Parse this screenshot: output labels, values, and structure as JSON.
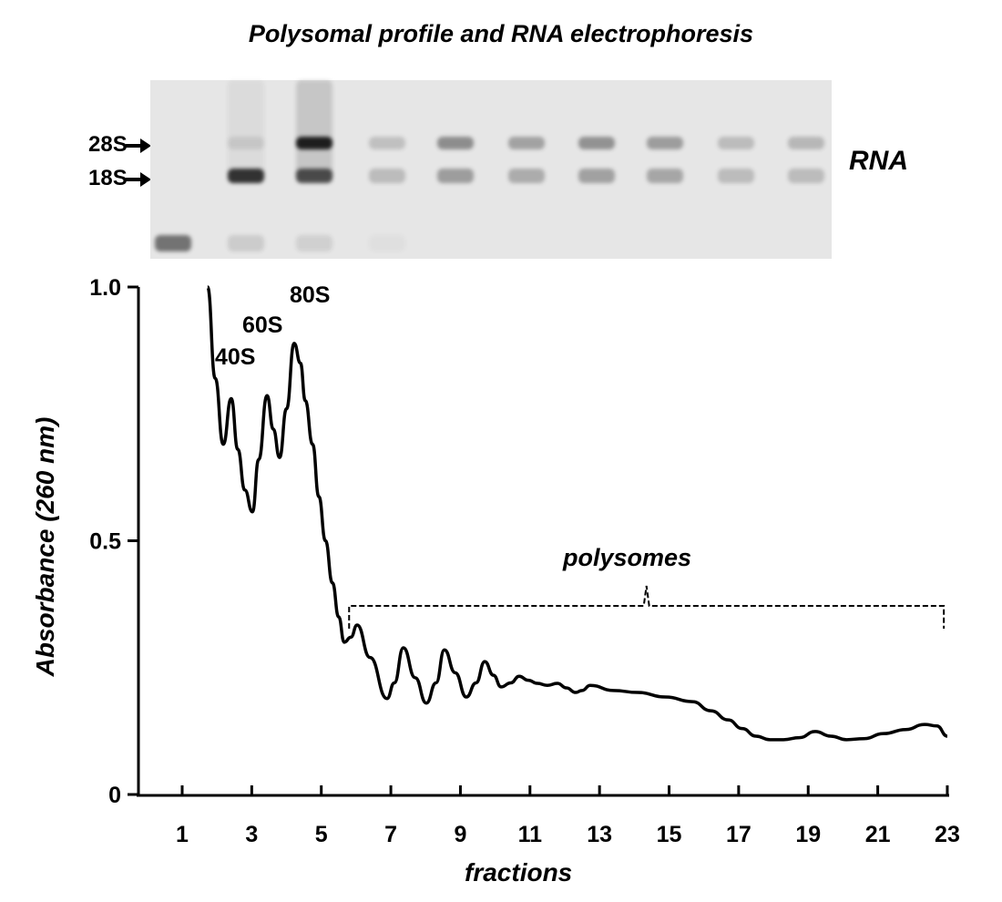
{
  "title": "Polysomal profile and RNA electrophoresis",
  "gel": {
    "markers": [
      {
        "label": "28S"
      },
      {
        "label": "18S"
      }
    ],
    "side_label": "RNA",
    "lanes": [
      {
        "rRNA_28S": 0.0,
        "rRNA_18S": 0.0,
        "low": 0.55,
        "smear": 0
      },
      {
        "rRNA_28S": 0.1,
        "rRNA_18S": 0.85,
        "low": 0.12,
        "smear": 0.05
      },
      {
        "rRNA_28S": 0.95,
        "rRNA_18S": 0.7,
        "low": 0.1,
        "smear": 0.15
      },
      {
        "rRNA_28S": 0.18,
        "rRNA_18S": 0.2,
        "low": 0.03,
        "smear": 0
      },
      {
        "rRNA_28S": 0.42,
        "rRNA_18S": 0.35,
        "low": 0,
        "smear": 0
      },
      {
        "rRNA_28S": 0.32,
        "rRNA_18S": 0.28,
        "low": 0,
        "smear": 0
      },
      {
        "rRNA_28S": 0.4,
        "rRNA_18S": 0.33,
        "low": 0,
        "smear": 0
      },
      {
        "rRNA_28S": 0.35,
        "rRNA_18S": 0.3,
        "low": 0,
        "smear": 0
      },
      {
        "rRNA_28S": 0.2,
        "rRNA_18S": 0.2,
        "low": 0,
        "smear": 0
      },
      {
        "rRNA_28S": 0.22,
        "rRNA_18S": 0.2,
        "low": 0,
        "smear": 0
      }
    ]
  },
  "chart_data": {
    "type": "line",
    "xlabel": "fractions",
    "ylabel": "Absorbance (260 nm)",
    "xlim": [
      -0.3,
      23
    ],
    "ylim": [
      0,
      1.0
    ],
    "xticks": [
      1,
      3,
      5,
      7,
      9,
      11,
      13,
      15,
      17,
      19,
      21,
      23
    ],
    "xtick_labels": [
      "1",
      "3",
      "5",
      "7",
      "9",
      "11",
      "13",
      "15",
      "17",
      "19",
      "21",
      "23"
    ],
    "yticks": [
      0,
      0.5,
      1.0
    ],
    "ytick_labels": [
      "0",
      "0.5",
      "1.0"
    ],
    "grid": false,
    "series": [
      {
        "color": "#000000",
        "x": [
          1.73,
          1.95,
          2.18,
          2.41,
          2.6,
          2.8,
          3.02,
          3.2,
          3.44,
          3.62,
          3.8,
          4.0,
          4.22,
          4.4,
          4.54,
          4.75,
          4.93,
          5.12,
          5.32,
          5.5,
          5.66,
          5.85,
          6.03,
          6.4,
          6.89,
          7.1,
          7.36,
          7.7,
          8.02,
          8.3,
          8.54,
          8.85,
          9.17,
          9.45,
          9.7,
          9.95,
          10.17,
          10.45,
          10.69,
          10.95,
          11.21,
          11.5,
          11.79,
          12.05,
          12.31,
          12.5,
          12.73,
          13.4,
          14.1,
          14.9,
          15.67,
          16.2,
          16.7,
          17.1,
          17.5,
          17.9,
          18.29,
          18.75,
          19.2,
          19.65,
          20.1,
          20.6,
          21.17,
          21.8,
          22.35,
          22.7,
          23.0
        ],
        "y": [
          1.0,
          0.82,
          0.69,
          0.78,
          0.68,
          0.6,
          0.557,
          0.66,
          0.786,
          0.72,
          0.664,
          0.76,
          0.889,
          0.85,
          0.776,
          0.69,
          0.587,
          0.5,
          0.417,
          0.35,
          0.3,
          0.31,
          0.334,
          0.27,
          0.189,
          0.22,
          0.289,
          0.23,
          0.18,
          0.22,
          0.285,
          0.24,
          0.192,
          0.22,
          0.262,
          0.235,
          0.212,
          0.22,
          0.233,
          0.225,
          0.219,
          0.215,
          0.219,
          0.21,
          0.201,
          0.205,
          0.215,
          0.205,
          0.201,
          0.192,
          0.183,
          0.165,
          0.147,
          0.13,
          0.115,
          0.108,
          0.108,
          0.112,
          0.124,
          0.115,
          0.108,
          0.11,
          0.12,
          0.128,
          0.138,
          0.135,
          0.115
        ]
      }
    ],
    "annotations": [
      {
        "text": "40S",
        "x": 2.5,
        "y": 0.78
      },
      {
        "text": "60S",
        "x": 3.5,
        "y": 0.79
      },
      {
        "text": "80S",
        "x": 4.3,
        "y": 0.89
      },
      {
        "text": "polysomes",
        "x_start": 5.8,
        "x_end": 22.9
      }
    ]
  }
}
